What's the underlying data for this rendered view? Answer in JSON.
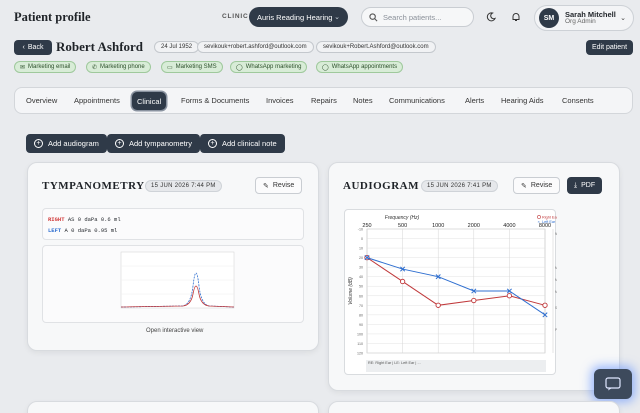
{
  "header": {
    "title": "Patient profile",
    "clinic_label": "CLINIC",
    "clinic_value": "Auris Reading Hearing",
    "search_placeholder": "Search patients...",
    "user_name": "Sarah Mitchell",
    "user_role": "Org Admin",
    "user_initials": "SM"
  },
  "patient": {
    "back_label": "Back",
    "name": "Robert Ashford",
    "dob": "24 Jul 1952",
    "email1": "sevikouk+robert.ashford@outlook.com",
    "email2": "sevikouk+Robert.Ashford@outlook.com",
    "edit_label": "Edit patient",
    "tags": [
      "Marketing email",
      "Marketing phone",
      "Marketing SMS",
      "WhatsApp marketing",
      "WhatsApp appointments"
    ]
  },
  "tabs": [
    "Overview",
    "Appointments",
    "Clinical",
    "Forms & Documents",
    "Invoices",
    "Repairs",
    "Notes",
    "Communications",
    "Alerts",
    "Hearing Aids",
    "Consents"
  ],
  "active_tab": "Clinical",
  "actions": [
    "Add audiogram",
    "Add tympanometry",
    "Add clinical note"
  ],
  "tympanometry": {
    "title": "TYMPANOMETRY",
    "date": "15 JUN 2026 7:44 PM",
    "revise_label": "Revise",
    "right_label": "RIGHT",
    "right_values": "AS 0 daPa 0.6 ml",
    "left_label": "LEFT",
    "left_values": "A 0 daPa 0.95 ml",
    "open_link": "Open interactive view"
  },
  "audiogram": {
    "title": "AUDIOGRAM",
    "date": "15 JUN 2026 7:41 PM",
    "revise_label": "Revise",
    "pdf_label": "PDF",
    "footnote": "RE: Right Ear | LE: Left Ear | ...",
    "legend_right": "Right Ear",
    "legend_left": "Left Ear"
  },
  "chart_data": {
    "type": "line",
    "title": "",
    "xlabel": "Frequency (Hz)",
    "ylabel": "Volume (dB)",
    "x": [
      250,
      500,
      1000,
      2000,
      4000,
      8000
    ],
    "x_scale": "log",
    "ylim": [
      -10,
      120
    ],
    "y_inverted": true,
    "y_ticks": [
      -10,
      0,
      10,
      20,
      30,
      40,
      50,
      60,
      70,
      80,
      90,
      100,
      110,
      120
    ],
    "severity_bands": [
      "Normal",
      "Mild",
      "Moderate",
      "Moderately Severe",
      "Severe",
      "Profound"
    ],
    "series": [
      {
        "name": "Right Ear",
        "marker": "circle",
        "color": "#c0393b",
        "values": [
          20,
          45,
          70,
          65,
          60,
          70
        ]
      },
      {
        "name": "Left Ear",
        "marker": "x",
        "color": "#2f6fd0",
        "values": [
          20,
          32,
          40,
          55,
          55,
          80
        ]
      }
    ],
    "legend": "top-right",
    "grid": true
  },
  "colors": {
    "primary": "#2f3a48",
    "tag_bg": "#d8ecd7",
    "right": "#c0393b",
    "left": "#2f6fd0"
  }
}
